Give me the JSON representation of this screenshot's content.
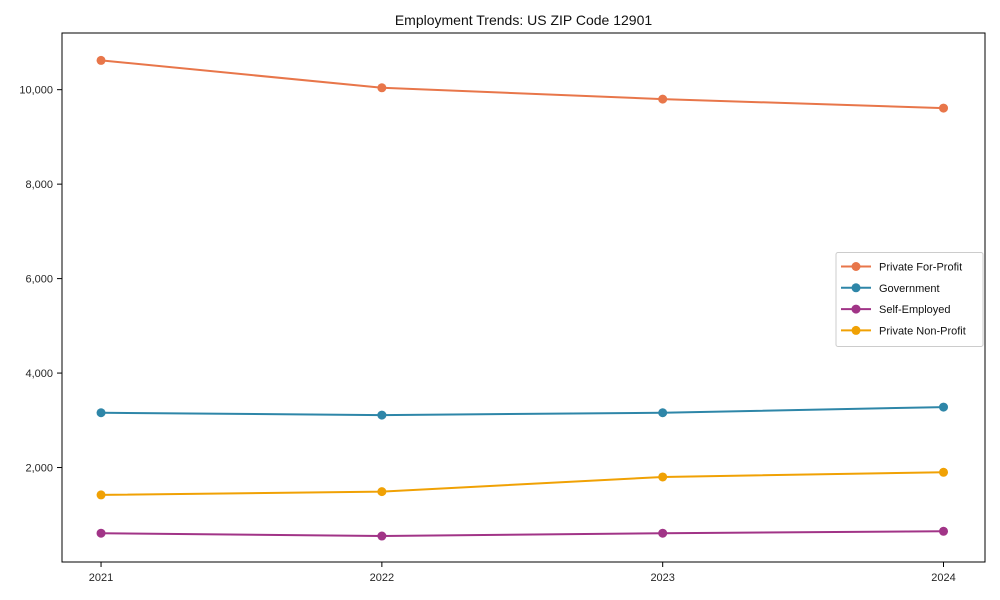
{
  "chart_data": {
    "type": "line",
    "title": "Employment Trends: US ZIP Code 12901",
    "xlabel": "",
    "ylabel": "",
    "x": [
      2021,
      2022,
      2023,
      2024
    ],
    "xtick_labels": [
      "2021",
      "2022",
      "2023",
      "2024"
    ],
    "yticks": [
      2000,
      4000,
      6000,
      8000,
      10000
    ],
    "ytick_labels": [
      "2,000",
      "4,000",
      "6,000",
      "8,000",
      "10,000"
    ],
    "ylim": [
      0,
      11200
    ],
    "grid": false,
    "legend_position": "center right",
    "marker": "circle",
    "series": [
      {
        "name": "Private For-Profit",
        "color": "#e8764a",
        "values": [
          10620,
          10040,
          9800,
          9610
        ]
      },
      {
        "name": "Government",
        "color": "#2e86a8",
        "values": [
          3160,
          3110,
          3160,
          3280
        ]
      },
      {
        "name": "Self-Employed",
        "color": "#a13487",
        "values": [
          610,
          550,
          610,
          650
        ]
      },
      {
        "name": "Private Non-Profit",
        "color": "#f0a104",
        "values": [
          1420,
          1490,
          1800,
          1900
        ]
      }
    ],
    "colors": {
      "spine": "#000000",
      "tick_label": "#262626",
      "legend_border": "#cccccc",
      "legend_text": "#111111",
      "background": "#ffffff"
    }
  }
}
